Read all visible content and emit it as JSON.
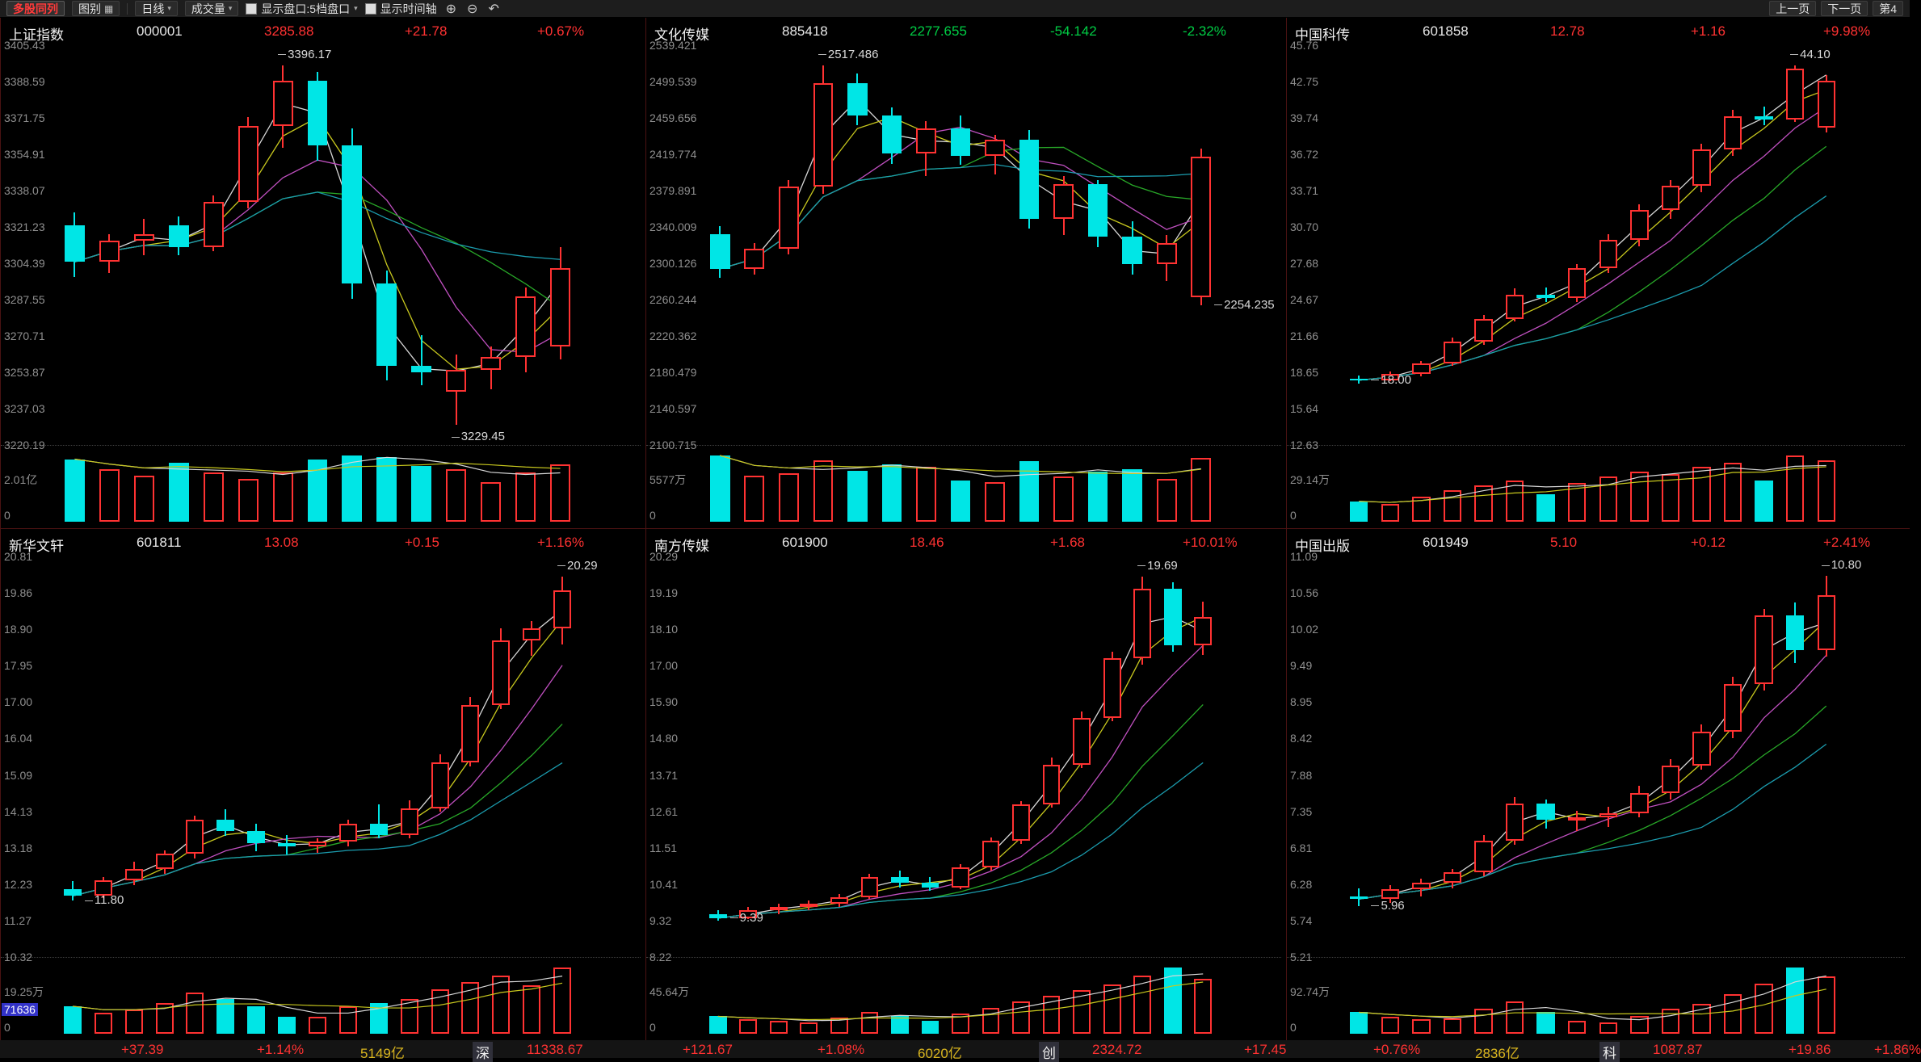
{
  "toolbar": {
    "title": "多股同列",
    "layout_label": "图别",
    "period": "日线",
    "indicator": "成交量",
    "option_quote_panel": "显示盘口:5档盘口",
    "option_time_axis": "显示时间轴",
    "prev_page": "上一页",
    "next_page": "下一页",
    "page_indicator": "第4",
    "icons": {
      "grid": "▦",
      "caret": "▾",
      "zoom_in": "⊕",
      "zoom_out": "⊖",
      "undo": "↶"
    }
  },
  "colors": {
    "up": "#ff3232",
    "down": "#00cc44",
    "candle_up": "#ff3232",
    "candle_down": "#00e6e6"
  },
  "statusbar": {
    "items": [
      {
        "t": "+37.39",
        "c": "up"
      },
      {
        "t": "+1.14%",
        "c": "up"
      },
      {
        "t": "5149亿",
        "c": "amt"
      },
      {
        "t": "深",
        "c": "name"
      },
      {
        "t": "11338.67",
        "c": "up"
      },
      {
        "t": "+121.67",
        "c": "up"
      },
      {
        "t": "+1.08%",
        "c": "up"
      },
      {
        "t": "6020亿",
        "c": "amt"
      },
      {
        "t": "创",
        "c": "name"
      },
      {
        "t": "2324.72",
        "c": "up"
      },
      {
        "t": "+17.45",
        "c": "up"
      },
      {
        "t": "+0.76%",
        "c": "up"
      },
      {
        "t": "2836亿",
        "c": "amt"
      },
      {
        "t": "科",
        "c": "name"
      },
      {
        "t": "1087.87",
        "c": "up"
      },
      {
        "t": "+19.86",
        "c": "up"
      },
      {
        "t": "+1.86%",
        "c": "up"
      }
    ]
  },
  "panels": [
    {
      "name": "上证指数",
      "code": "000001",
      "price": "3285.88",
      "change": "+21.78",
      "pct": "+0.67%",
      "trend": "up",
      "chart_type": "candlestick",
      "ymax": 3405.43,
      "ymin": 3220.19,
      "axis": [
        "3405.43",
        "3388.59",
        "3371.75",
        "3354.91",
        "3338.07",
        "3321.23",
        "3304.39",
        "3287.55",
        "3270.71",
        "3253.87",
        "3237.03",
        "3220.19"
      ],
      "vol_label": "2.01亿",
      "vol_zero": "0",
      "candles": [
        [
          3322,
          3328,
          3298,
          3305,
          1.9
        ],
        [
          3305,
          3318,
          3300,
          3315,
          1.6
        ],
        [
          3315,
          3325,
          3308,
          3318,
          1.4
        ],
        [
          3322,
          3326,
          3308,
          3312,
          1.8
        ],
        [
          3312,
          3336,
          3310,
          3333,
          1.5
        ],
        [
          3333,
          3372,
          3330,
          3368,
          1.3
        ],
        [
          3368,
          3396.17,
          3358,
          3389,
          1.5
        ],
        [
          3389,
          3393,
          3352,
          3359,
          1.9
        ],
        [
          3359,
          3367,
          3288,
          3295,
          2.01
        ],
        [
          3295,
          3301,
          3250,
          3257,
          1.95
        ],
        [
          3257,
          3271,
          3248,
          3254,
          1.7
        ],
        [
          3245,
          3262,
          3229.45,
          3255,
          1.6
        ],
        [
          3255,
          3266,
          3246,
          3261,
          1.2
        ],
        [
          3261,
          3293,
          3254,
          3289,
          1.5
        ],
        [
          3266,
          3312,
          3260,
          3302,
          1.75
        ]
      ],
      "annotations": [
        {
          "t": "3396.17",
          "i": 6,
          "v": 3396.17,
          "pos": "above"
        },
        {
          "t": "3229.45",
          "i": 11,
          "v": 3229.45,
          "pos": "below"
        }
      ]
    },
    {
      "name": "文化传媒",
      "code": "885418",
      "price": "2277.655",
      "change": "-54.142",
      "pct": "-2.32%",
      "trend": "down",
      "chart_type": "candlestick",
      "ymax": 2539.421,
      "ymin": 2100.715,
      "axis": [
        "2539.421",
        "2499.539",
        "2459.656",
        "2419.774",
        "2379.891",
        "2340.009",
        "2300.126",
        "2260.244",
        "2220.362",
        "2180.479",
        "2140.597",
        "2100.715"
      ],
      "vol_label": "5577万",
      "vol_zero": "0",
      "candles": [
        [
          2332,
          2341,
          2284,
          2294,
          5577
        ],
        [
          2294,
          2322,
          2288,
          2316,
          3900
        ],
        [
          2316,
          2391,
          2310,
          2384,
          4100
        ],
        [
          2384,
          2517.486,
          2376,
          2498,
          5200
        ],
        [
          2498,
          2508,
          2452,
          2462,
          4300
        ],
        [
          2462,
          2471,
          2409,
          2421,
          4800
        ],
        [
          2421,
          2456,
          2396,
          2448,
          4600
        ],
        [
          2448,
          2462,
          2408,
          2418,
          3500
        ],
        [
          2418,
          2441,
          2398,
          2436,
          3300
        ],
        [
          2436,
          2446,
          2338,
          2349,
          5100
        ],
        [
          2349,
          2396,
          2331,
          2387,
          3800
        ],
        [
          2387,
          2391,
          2318,
          2329,
          4200
        ],
        [
          2329,
          2346,
          2288,
          2299,
          4400
        ],
        [
          2299,
          2331,
          2281,
          2322,
          3600
        ],
        [
          2263,
          2426,
          2254.235,
          2417,
          5400
        ]
      ],
      "annotations": [
        {
          "t": "2517.486",
          "i": 3,
          "v": 2517.486,
          "pos": "above"
        },
        {
          "t": "2254.235",
          "i": 14,
          "v": 2254.235,
          "pos": "right"
        }
      ]
    },
    {
      "name": "中国科传",
      "code": "601858",
      "price": "12.78",
      "change": "+1.16",
      "pct": "+9.98%",
      "trend": "up",
      "chart_type": "candlestick",
      "ymax": 45.76,
      "ymin": 12.63,
      "axis": [
        "45.76",
        "42.75",
        "39.74",
        "36.72",
        "33.71",
        "30.70",
        "27.68",
        "24.67",
        "21.66",
        "18.65",
        "15.64",
        "12.63"
      ],
      "vol_label": "29.14万",
      "vol_zero": "0",
      "candles": [
        [
          18.1,
          18.4,
          17.7,
          18.0,
          9
        ],
        [
          18.0,
          18.7,
          17.9,
          18.5,
          8
        ],
        [
          18.5,
          19.6,
          18.3,
          19.4,
          11
        ],
        [
          19.4,
          21.5,
          19.2,
          21.2,
          14
        ],
        [
          21.2,
          23.4,
          20.9,
          23.1,
          16
        ],
        [
          23.1,
          25.6,
          22.9,
          25.1,
          18
        ],
        [
          25.1,
          25.7,
          24.5,
          24.8,
          12
        ],
        [
          24.8,
          27.6,
          24.5,
          27.3,
          17
        ],
        [
          27.3,
          30.1,
          26.9,
          29.6,
          20
        ],
        [
          29.6,
          32.6,
          29.1,
          32.1,
          22
        ],
        [
          32.1,
          34.6,
          31.4,
          34.1,
          21
        ],
        [
          34.1,
          37.6,
          33.6,
          37.1,
          24
        ],
        [
          37.1,
          40.4,
          36.6,
          39.9,
          26
        ],
        [
          39.9,
          40.7,
          39.1,
          39.6,
          18
        ],
        [
          39.6,
          44.1,
          39.4,
          43.8,
          29.14
        ],
        [
          38.9,
          43.3,
          38.5,
          42.8,
          27
        ]
      ],
      "annotations": [
        {
          "t": "44.10",
          "i": 14,
          "v": 44.1,
          "pos": "above"
        },
        {
          "t": "18.00",
          "i": 0,
          "v": 18.0,
          "pos": "right"
        }
      ]
    },
    {
      "name": "新华文轩",
      "code": "601811",
      "price": "13.08",
      "change": "+0.15",
      "pct": "+1.16%",
      "trend": "up",
      "chart_type": "candlestick",
      "ymax": 20.81,
      "ymin": 10.32,
      "axis": [
        "20.81",
        "19.86",
        "18.90",
        "17.95",
        "17.00",
        "16.04",
        "15.09",
        "14.13",
        "13.18",
        "12.23",
        "11.27",
        "10.32"
      ],
      "vol_label": "19.25万",
      "vol_zero": "0",
      "vol_current": "71636",
      "candles": [
        [
          12.1,
          12.3,
          11.8,
          11.92,
          8
        ],
        [
          11.92,
          12.42,
          11.86,
          12.32,
          6
        ],
        [
          12.32,
          12.82,
          12.2,
          12.62,
          7
        ],
        [
          12.62,
          13.12,
          12.5,
          13.02,
          9
        ],
        [
          13.02,
          14.02,
          12.9,
          13.92,
          12
        ],
        [
          13.92,
          14.2,
          13.5,
          13.62,
          10
        ],
        [
          13.62,
          13.8,
          13.1,
          13.3,
          8
        ],
        [
          13.3,
          13.52,
          13.0,
          13.22,
          5
        ],
        [
          13.22,
          13.42,
          13.05,
          13.35,
          5
        ],
        [
          13.35,
          13.92,
          13.22,
          13.82,
          8
        ],
        [
          13.82,
          14.32,
          13.42,
          13.52,
          9
        ],
        [
          13.52,
          14.42,
          13.42,
          14.22,
          10
        ],
        [
          14.22,
          15.62,
          14.12,
          15.42,
          13
        ],
        [
          15.42,
          17.12,
          15.32,
          16.92,
          15
        ],
        [
          16.92,
          18.92,
          16.82,
          18.62,
          17
        ],
        [
          18.62,
          19.12,
          18.2,
          18.92,
          14
        ],
        [
          18.92,
          20.29,
          18.5,
          19.92,
          19.25
        ]
      ],
      "annotations": [
        {
          "t": "20.29",
          "i": 16,
          "v": 20.29,
          "pos": "above"
        },
        {
          "t": "11.80",
          "i": 0,
          "v": 11.8,
          "pos": "right"
        }
      ]
    },
    {
      "name": "南方传媒",
      "code": "601900",
      "price": "18.46",
      "change": "+1.68",
      "pct": "+10.01%",
      "trend": "up",
      "chart_type": "candlestick",
      "ymax": 20.29,
      "ymin": 8.22,
      "axis": [
        "20.29",
        "19.19",
        "18.10",
        "17.00",
        "15.90",
        "14.80",
        "13.71",
        "12.61",
        "11.51",
        "10.41",
        "9.32",
        "8.22"
      ],
      "vol_label": "45.64万",
      "vol_zero": "0",
      "candles": [
        [
          9.5,
          9.62,
          9.32,
          9.39,
          12
        ],
        [
          9.39,
          9.72,
          9.36,
          9.62,
          10
        ],
        [
          9.62,
          9.82,
          9.52,
          9.72,
          9
        ],
        [
          9.72,
          9.92,
          9.62,
          9.82,
          8
        ],
        [
          9.82,
          10.12,
          9.72,
          10.02,
          11
        ],
        [
          10.02,
          10.72,
          9.96,
          10.62,
          15
        ],
        [
          10.62,
          10.82,
          10.32,
          10.45,
          12
        ],
        [
          10.45,
          10.62,
          10.22,
          10.32,
          9
        ],
        [
          10.32,
          11.02,
          10.26,
          10.92,
          14
        ],
        [
          10.92,
          11.82,
          10.82,
          11.72,
          18
        ],
        [
          11.72,
          12.92,
          11.62,
          12.82,
          22
        ],
        [
          12.82,
          14.22,
          12.72,
          14.02,
          26
        ],
        [
          14.02,
          15.62,
          13.92,
          15.42,
          30
        ],
        [
          15.42,
          17.42,
          15.32,
          17.22,
          34
        ],
        [
          17.22,
          19.69,
          17.02,
          19.32,
          40
        ],
        [
          19.32,
          19.52,
          17.42,
          17.62,
          45.64
        ],
        [
          17.62,
          18.92,
          17.32,
          18.46,
          38
        ]
      ],
      "annotations": [
        {
          "t": "19.69",
          "i": 14,
          "v": 19.69,
          "pos": "above"
        },
        {
          "t": "9.39",
          "i": 0,
          "v": 9.39,
          "pos": "right"
        }
      ]
    },
    {
      "name": "中国出版",
      "code": "601949",
      "price": "5.10",
      "change": "+0.12",
      "pct": "+2.41%",
      "trend": "up",
      "chart_type": "candlestick",
      "ymax": 11.09,
      "ymin": 5.21,
      "axis": [
        "11.09",
        "10.56",
        "10.02",
        "9.49",
        "8.95",
        "8.42",
        "7.88",
        "7.35",
        "6.81",
        "6.28",
        "5.74",
        "5.21"
      ],
      "vol_label": "92.74万",
      "vol_zero": "0",
      "candles": [
        [
          6.1,
          6.22,
          5.96,
          6.06,
          30
        ],
        [
          6.06,
          6.26,
          6.0,
          6.2,
          24
        ],
        [
          6.2,
          6.36,
          6.1,
          6.3,
          20
        ],
        [
          6.3,
          6.5,
          6.22,
          6.46,
          22
        ],
        [
          6.46,
          7.0,
          6.4,
          6.92,
          35
        ],
        [
          6.92,
          7.56,
          6.86,
          7.46,
          45
        ],
        [
          7.46,
          7.52,
          7.1,
          7.22,
          30
        ],
        [
          7.22,
          7.36,
          7.06,
          7.26,
          18
        ],
        [
          7.26,
          7.42,
          7.12,
          7.32,
          16
        ],
        [
          7.32,
          7.72,
          7.26,
          7.62,
          25
        ],
        [
          7.62,
          8.12,
          7.52,
          8.02,
          35
        ],
        [
          8.02,
          8.62,
          7.96,
          8.52,
          42
        ],
        [
          8.52,
          9.32,
          8.42,
          9.22,
          55
        ],
        [
          9.22,
          10.32,
          9.12,
          10.22,
          70
        ],
        [
          10.22,
          10.42,
          9.52,
          9.72,
          92.74
        ],
        [
          9.72,
          10.8,
          9.62,
          10.52,
          80
        ]
      ],
      "annotations": [
        {
          "t": "10.80",
          "i": 15,
          "v": 10.8,
          "pos": "above"
        },
        {
          "t": "5.96",
          "i": 0,
          "v": 5.96,
          "pos": "right"
        }
      ]
    }
  ]
}
